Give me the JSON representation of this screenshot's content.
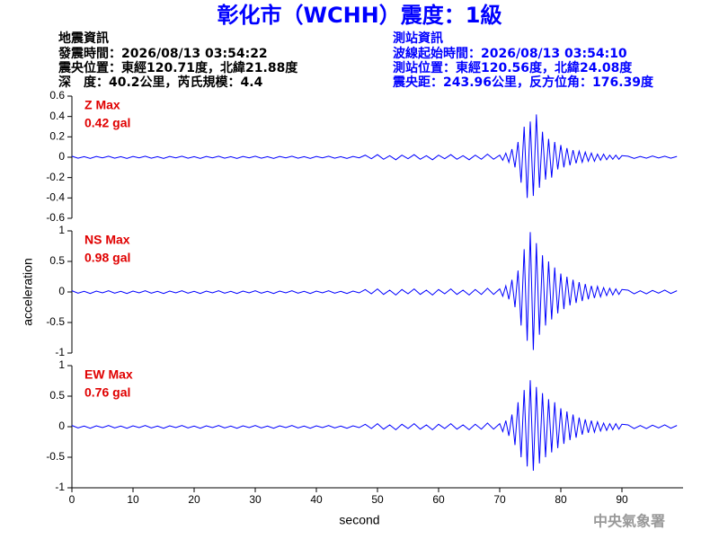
{
  "header": {
    "title": "彰化市（WCHH）震度：1級",
    "left": [
      "地震資訊",
      "發震時間：2026/08/13 03:54:22",
      "震央位置：東經120.71度，北緯21.88度",
      "深　度：40.2公里，芮氏規模：4.4"
    ],
    "right": [
      "測站資訊",
      "波線起始時間：2026/08/13 03:54:10",
      "測站位置：東經120.56度，北緯24.08度",
      "震央距：243.96公里，反方位角：176.39度"
    ]
  },
  "footer": "中央氣象署",
  "chart_data": [
    {
      "type": "line",
      "annotations": [
        "Z Max",
        "0.42 gal"
      ],
      "xlim": [
        0,
        100
      ],
      "ylim": [
        -0.6,
        0.6
      ],
      "yticks": [
        -0.6,
        -0.4,
        -0.2,
        0,
        0.2,
        0.4,
        0.6
      ],
      "x": [
        0,
        1,
        2,
        3,
        4,
        5,
        6,
        7,
        8,
        9,
        10,
        11,
        12,
        13,
        14,
        15,
        16,
        17,
        18,
        19,
        20,
        21,
        22,
        23,
        24,
        25,
        26,
        27,
        28,
        29,
        30,
        31,
        32,
        33,
        34,
        35,
        36,
        37,
        38,
        39,
        40,
        41,
        42,
        43,
        44,
        45,
        46,
        47,
        48,
        49,
        50,
        51,
        52,
        53,
        54,
        55,
        56,
        57,
        58,
        59,
        60,
        61,
        62,
        63,
        64,
        65,
        66,
        67,
        68,
        69,
        70,
        70.5,
        71,
        71.5,
        72,
        72.5,
        73,
        73.5,
        74,
        74.5,
        75,
        75.5,
        76,
        76.5,
        77,
        77.5,
        78,
        78.5,
        79,
        79.5,
        80,
        80.5,
        81,
        81.5,
        82,
        82.5,
        83,
        83.5,
        84,
        84.5,
        85,
        85.5,
        86,
        86.5,
        87,
        87.5,
        88,
        88.5,
        89,
        89.5,
        90,
        91,
        92,
        93,
        94,
        95,
        96,
        97,
        98,
        99
      ],
      "series": [
        {
          "color": "#0000ff",
          "values": [
            0.01,
            -0.01,
            0.005,
            -0.012,
            0.008,
            -0.006,
            0.01,
            -0.01,
            0.005,
            -0.012,
            0.008,
            -0.006,
            0.01,
            -0.01,
            0.005,
            -0.012,
            0.008,
            -0.006,
            0.01,
            -0.01,
            0.005,
            -0.012,
            0.008,
            -0.006,
            0.01,
            -0.01,
            0.005,
            -0.012,
            0.008,
            -0.006,
            0.01,
            -0.01,
            0.005,
            -0.012,
            0.008,
            -0.006,
            0.01,
            -0.01,
            0.005,
            -0.012,
            0.008,
            -0.006,
            0.01,
            -0.01,
            0.005,
            -0.012,
            0.008,
            -0.006,
            0.02,
            -0.015,
            0.025,
            -0.02,
            0.015,
            -0.025,
            0.02,
            -0.015,
            0.025,
            -0.02,
            0.015,
            -0.025,
            0.02,
            -0.015,
            0.025,
            -0.02,
            0.015,
            -0.025,
            0.02,
            -0.02,
            0.03,
            -0.02,
            0.02,
            -0.03,
            0.04,
            -0.05,
            0.08,
            -0.1,
            0.15,
            -0.25,
            0.3,
            -0.4,
            0.35,
            -0.38,
            0.42,
            -0.3,
            0.25,
            -0.22,
            0.18,
            -0.2,
            0.15,
            -0.12,
            0.12,
            -0.1,
            0.09,
            -0.08,
            0.07,
            -0.06,
            0.06,
            -0.05,
            0.05,
            -0.04,
            0.04,
            -0.04,
            0.03,
            -0.03,
            0.03,
            -0.025,
            0.02,
            -0.02,
            0.02,
            -0.02,
            0.015,
            0.01,
            -0.012,
            0.008,
            -0.01,
            0.012,
            -0.008,
            0.01,
            -0.01,
            0.008
          ]
        }
      ]
    },
    {
      "type": "line",
      "annotations": [
        "NS Max",
        "0.98 gal"
      ],
      "ylabel": "acceleration",
      "xlim": [
        0,
        100
      ],
      "ylim": [
        -1,
        1
      ],
      "yticks": [
        -1,
        -0.5,
        0,
        0.5,
        1
      ],
      "x": [
        0,
        1,
        2,
        3,
        4,
        5,
        6,
        7,
        8,
        9,
        10,
        11,
        12,
        13,
        14,
        15,
        16,
        17,
        18,
        19,
        20,
        21,
        22,
        23,
        24,
        25,
        26,
        27,
        28,
        29,
        30,
        31,
        32,
        33,
        34,
        35,
        36,
        37,
        38,
        39,
        40,
        41,
        42,
        43,
        44,
        45,
        46,
        47,
        48,
        49,
        50,
        51,
        52,
        53,
        54,
        55,
        56,
        57,
        58,
        59,
        60,
        61,
        62,
        63,
        64,
        65,
        66,
        67,
        68,
        69,
        70,
        70.5,
        71,
        71.5,
        72,
        72.5,
        73,
        73.5,
        74,
        74.5,
        75,
        75.5,
        76,
        76.5,
        77,
        77.5,
        78,
        78.5,
        79,
        79.5,
        80,
        80.5,
        81,
        81.5,
        82,
        82.5,
        83,
        83.5,
        84,
        84.5,
        85,
        85.5,
        86,
        86.5,
        87,
        87.5,
        88,
        88.5,
        89,
        89.5,
        90,
        91,
        92,
        93,
        94,
        95,
        96,
        97,
        98,
        99
      ],
      "series": [
        {
          "color": "#0000ff",
          "values": [
            0.02,
            -0.02,
            0.01,
            -0.025,
            0.015,
            -0.015,
            0.02,
            -0.02,
            0.01,
            -0.025,
            0.015,
            -0.015,
            0.02,
            -0.02,
            0.01,
            -0.025,
            0.015,
            -0.015,
            0.02,
            -0.02,
            0.01,
            -0.025,
            0.015,
            -0.015,
            0.02,
            -0.02,
            0.01,
            -0.025,
            0.015,
            -0.015,
            0.02,
            -0.02,
            0.01,
            -0.025,
            0.015,
            -0.015,
            0.02,
            -0.02,
            0.01,
            -0.025,
            0.015,
            -0.015,
            0.02,
            -0.02,
            0.01,
            -0.025,
            0.015,
            -0.015,
            0.04,
            -0.03,
            0.05,
            -0.04,
            0.03,
            -0.05,
            0.04,
            -0.03,
            0.05,
            -0.04,
            0.03,
            -0.05,
            0.04,
            -0.03,
            0.05,
            -0.04,
            0.03,
            -0.05,
            0.04,
            -0.04,
            0.06,
            -0.04,
            0.05,
            -0.07,
            0.1,
            -0.12,
            0.2,
            -0.25,
            0.35,
            -0.55,
            0.7,
            -0.8,
            0.98,
            -0.95,
            0.8,
            -0.7,
            0.6,
            -0.55,
            0.5,
            -0.45,
            0.4,
            -0.35,
            0.3,
            -0.28,
            0.25,
            -0.22,
            0.2,
            -0.18,
            0.16,
            -0.15,
            0.13,
            -0.12,
            0.1,
            -0.1,
            0.09,
            -0.08,
            0.07,
            -0.06,
            0.06,
            -0.05,
            0.05,
            -0.04,
            0.04,
            0.03,
            -0.03,
            0.02,
            -0.03,
            0.025,
            -0.02,
            0.03,
            -0.025,
            0.02
          ]
        }
      ]
    },
    {
      "type": "line",
      "annotations": [
        "EW Max",
        "0.76 gal"
      ],
      "xlabel": "second",
      "xlim": [
        0,
        100
      ],
      "xticks": [
        0,
        10,
        20,
        30,
        40,
        50,
        60,
        70,
        80,
        90
      ],
      "ylim": [
        -1,
        1
      ],
      "yticks": [
        -1,
        -0.5,
        0,
        0.5,
        1
      ],
      "x": [
        0,
        1,
        2,
        3,
        4,
        5,
        6,
        7,
        8,
        9,
        10,
        11,
        12,
        13,
        14,
        15,
        16,
        17,
        18,
        19,
        20,
        21,
        22,
        23,
        24,
        25,
        26,
        27,
        28,
        29,
        30,
        31,
        32,
        33,
        34,
        35,
        36,
        37,
        38,
        39,
        40,
        41,
        42,
        43,
        44,
        45,
        46,
        47,
        48,
        49,
        50,
        51,
        52,
        53,
        54,
        55,
        56,
        57,
        58,
        59,
        60,
        61,
        62,
        63,
        64,
        65,
        66,
        67,
        68,
        69,
        70,
        70.5,
        71,
        71.5,
        72,
        72.5,
        73,
        73.5,
        74,
        74.5,
        75,
        75.5,
        76,
        76.5,
        77,
        77.5,
        78,
        78.5,
        79,
        79.5,
        80,
        80.5,
        81,
        81.5,
        82,
        82.5,
        83,
        83.5,
        84,
        84.5,
        85,
        85.5,
        86,
        86.5,
        87,
        87.5,
        88,
        88.5,
        89,
        89.5,
        90,
        91,
        92,
        93,
        94,
        95,
        96,
        97,
        98,
        99
      ],
      "series": [
        {
          "color": "#0000ff",
          "values": [
            0.02,
            -0.02,
            0.01,
            -0.025,
            0.015,
            -0.015,
            0.02,
            -0.02,
            0.01,
            -0.025,
            0.015,
            -0.015,
            0.02,
            -0.02,
            0.01,
            -0.025,
            0.015,
            -0.015,
            0.02,
            -0.02,
            0.01,
            -0.025,
            0.015,
            -0.015,
            0.02,
            -0.02,
            0.01,
            -0.025,
            0.015,
            -0.015,
            0.02,
            -0.02,
            0.01,
            -0.025,
            0.015,
            -0.015,
            0.02,
            -0.02,
            0.01,
            -0.025,
            0.015,
            -0.015,
            0.02,
            -0.02,
            0.01,
            -0.025,
            0.015,
            -0.015,
            0.04,
            -0.03,
            0.05,
            -0.04,
            0.03,
            -0.05,
            0.04,
            -0.03,
            0.05,
            -0.04,
            0.03,
            -0.05,
            0.04,
            -0.03,
            0.05,
            -0.04,
            0.03,
            -0.05,
            0.04,
            -0.04,
            0.06,
            -0.04,
            0.05,
            -0.08,
            0.1,
            -0.15,
            0.2,
            -0.3,
            0.4,
            -0.5,
            0.6,
            -0.65,
            0.76,
            -0.72,
            0.65,
            -0.6,
            0.55,
            -0.5,
            0.45,
            -0.42,
            0.4,
            -0.35,
            0.3,
            -0.28,
            0.25,
            -0.22,
            0.2,
            -0.18,
            0.15,
            -0.13,
            0.12,
            -0.1,
            0.1,
            -0.09,
            0.08,
            -0.07,
            0.06,
            -0.06,
            0.05,
            -0.05,
            0.05,
            -0.04,
            0.04,
            0.03,
            -0.03,
            0.02,
            -0.03,
            0.025,
            -0.02,
            0.03,
            -0.025,
            0.02
          ]
        }
      ]
    }
  ]
}
